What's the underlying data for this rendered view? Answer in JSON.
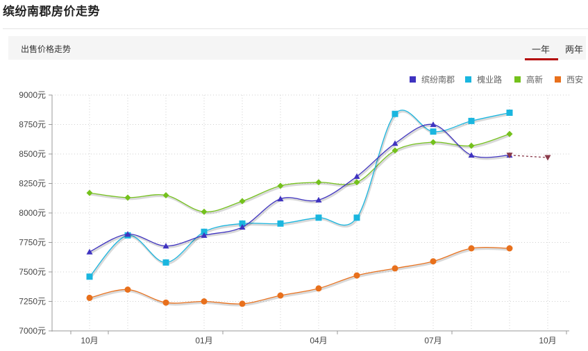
{
  "page": {
    "title": "缤纷南郡房价走势"
  },
  "toolbar": {
    "label": "出售价格走势",
    "tabs": [
      {
        "label": "一年",
        "active": true
      },
      {
        "label": "两年",
        "active": false
      }
    ]
  },
  "chart_data": {
    "type": "line",
    "x": [
      "10月",
      "11月",
      "12月",
      "01月",
      "02月",
      "03月",
      "04月",
      "05月",
      "06月",
      "07月",
      "08月",
      "09月",
      "10月"
    ],
    "xticks": [
      {
        "index": 0,
        "label": "10月"
      },
      {
        "index": 3,
        "label": "01月"
      },
      {
        "index": 6,
        "label": "04月"
      },
      {
        "index": 9,
        "label": "07月"
      },
      {
        "index": 12,
        "label": "10月"
      }
    ],
    "ylim": [
      7000,
      9000
    ],
    "yticks": [
      7000,
      7250,
      7500,
      7750,
      8000,
      8250,
      8500,
      8750,
      9000
    ],
    "ytick_suffix": "元",
    "grid": true,
    "legend_position": "top-right",
    "series": [
      {
        "name": "缤纷南郡",
        "color": "#3f33c0",
        "marker": "triangle",
        "values": [
          7670,
          7820,
          7720,
          7810,
          7880,
          8120,
          8110,
          8310,
          8590,
          8750,
          8490,
          8490,
          null
        ],
        "forecast": {
          "from_index": 11,
          "to_index": 12,
          "values": [
            8490,
            8470
          ],
          "color": "#8a3a4a"
        }
      },
      {
        "name": "槐业路",
        "color": "#1ab6df",
        "marker": "square",
        "values": [
          7460,
          7810,
          7580,
          7840,
          7910,
          7910,
          7960,
          7960,
          8840,
          8690,
          8780,
          8850,
          null
        ]
      },
      {
        "name": "高新",
        "color": "#74c11c",
        "marker": "diamond",
        "values": [
          8170,
          8130,
          8150,
          8010,
          8100,
          8230,
          8260,
          8260,
          8530,
          8600,
          8570,
          8670,
          null
        ]
      },
      {
        "name": "西安",
        "color": "#e8701c",
        "marker": "circle",
        "values": [
          7280,
          7350,
          7240,
          7250,
          7230,
          7300,
          7360,
          7470,
          7530,
          7590,
          7700,
          7700,
          null
        ]
      }
    ]
  }
}
